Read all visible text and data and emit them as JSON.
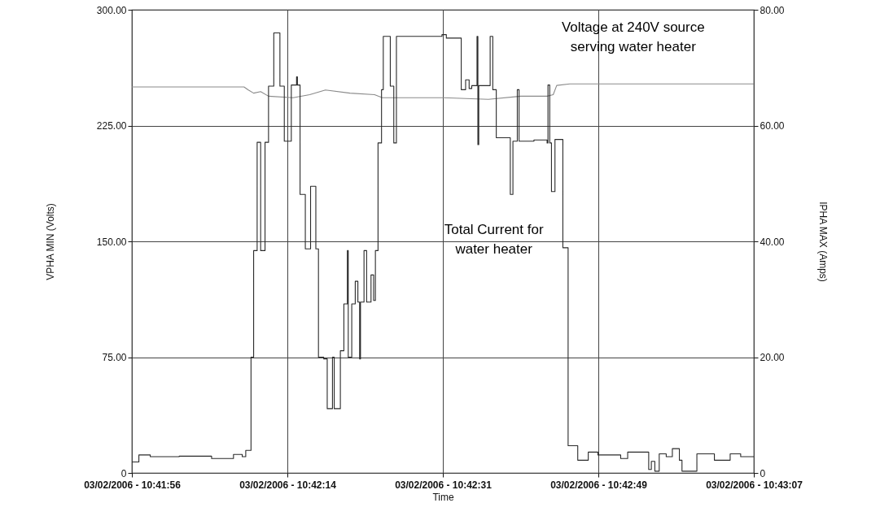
{
  "chart_data": {
    "type": "line",
    "xlabel": "Time",
    "ylabel": "VPHA MIN (Volts)",
    "y2label": "IPHA MAX (Amps)",
    "annotations": [
      "Voltage at 240V source\nserving water heater",
      "Total Current for\nwater heater"
    ],
    "xlim": [
      "2006-03-02T10:41:56",
      "2006-03-02T10:43:07"
    ],
    "xticks": [
      {
        "value": "2006-03-02T10:41:56",
        "label": "03/02/2006 - 10:41:56"
      },
      {
        "value": "2006-03-02T10:42:13.75",
        "label": "03/02/2006 - 10:42:14"
      },
      {
        "value": "2006-03-02T10:42:31.5",
        "label": "03/02/2006 - 10:42:31"
      },
      {
        "value": "2006-03-02T10:42:49.25",
        "label": "03/02/2006 - 10:42:49"
      },
      {
        "value": "2006-03-02T10:43:07",
        "label": "03/02/2006 - 10:43:07"
      }
    ],
    "ylim": [
      0,
      300
    ],
    "yticks": [
      0,
      {
        "value": 75,
        "label": "75.00"
      },
      {
        "value": 150,
        "label": "150.00"
      },
      {
        "value": 225,
        "label": "225.00"
      },
      {
        "value": 300,
        "label": "300.00"
      }
    ],
    "y2lim": [
      0,
      80
    ],
    "y2ticks": [
      0,
      {
        "value": 20,
        "label": "20.00"
      },
      {
        "value": 40,
        "label": "40.00"
      },
      {
        "value": 60,
        "label": "60.00"
      },
      {
        "value": 80,
        "label": "80.00"
      }
    ],
    "grid": true,
    "series": [
      {
        "color": "#8a8a8a",
        "x": [
          "2006-03-02T10:41:56",
          "2006-03-02T10:42:08.8",
          "2006-03-02T10:42:09.3",
          "2006-03-02T10:42:09.9",
          "2006-03-02T10:42:10.7",
          "2006-03-02T10:42:11.6",
          "2006-03-02T10:42:14.4",
          "2006-03-02T10:42:16.3",
          "2006-03-02T10:42:18.1",
          "2006-03-02T10:42:20.9",
          "2006-03-02T10:42:23.7",
          "2006-03-02T10:42:24.6",
          "2006-03-02T10:42:31.6",
          "2006-03-02T10:42:36.7",
          "2006-03-02T10:42:40.4",
          "2006-03-02T10:42:43.4",
          "2006-03-02T10:42:44.1",
          "2006-03-02T10:42:44.5",
          "2006-03-02T10:42:46",
          "2006-03-02T10:43:07"
        ],
        "values": [
          250,
          250,
          248,
          246,
          247,
          244,
          243,
          245,
          248,
          246,
          245,
          243,
          243,
          242,
          244,
          244,
          245,
          251,
          252,
          252
        ]
      },
      {
        "type": "step",
        "axis": "y2",
        "color": "#2a2a2a",
        "x": [
          "2006-03-02T10:41:56",
          "2006-03-02T10:41:56.8",
          "2006-03-02T10:41:58.1",
          "2006-03-02T10:42:01.4",
          "2006-03-02T10:42:05.1",
          "2006-03-02T10:42:07.6",
          "2006-03-02T10:42:08.6",
          "2006-03-02T10:42:09",
          "2006-03-02T10:42:09.6",
          "2006-03-02T10:42:09.9",
          "2006-03-02T10:42:10.3",
          "2006-03-02T10:42:10.7",
          "2006-03-02T10:42:11.2",
          "2006-03-02T10:42:11.6",
          "2006-03-02T10:42:12.2",
          "2006-03-02T10:42:12.9",
          "2006-03-02T10:42:13.4",
          "2006-03-02T10:42:14.2",
          "2006-03-02T10:42:14.8",
          "2006-03-02T10:42:14.9",
          "2006-03-02T10:42:15.2",
          "2006-03-02T10:42:15.8",
          "2006-03-02T10:42:16.4",
          "2006-03-02T10:42:17",
          "2006-03-02T10:42:17.3",
          "2006-03-02T10:42:17.9",
          "2006-03-02T10:42:18.3",
          "2006-03-02T10:42:18.9",
          "2006-03-02T10:42:19.1",
          "2006-03-02T10:42:19.8",
          "2006-03-02T10:42:20.2",
          "2006-03-02T10:42:20.6",
          "2006-03-02T10:42:20.7",
          "2006-03-02T10:42:21.1",
          "2006-03-02T10:42:21.5",
          "2006-03-02T10:42:21.8",
          "2006-03-02T10:42:22",
          "2006-03-02T10:42:22.1",
          "2006-03-02T10:42:22.5",
          "2006-03-02T10:42:22.8",
          "2006-03-02T10:42:23.3",
          "2006-03-02T10:42:23.6",
          "2006-03-02T10:42:23.8",
          "2006-03-02T10:42:24.1",
          "2006-03-02T10:42:24.5",
          "2006-03-02T10:42:24.7",
          "2006-03-02T10:42:25.5",
          "2006-03-02T10:42:25.9",
          "2006-03-02T10:42:26.2",
          "2006-03-02T10:42:31.4",
          "2006-03-02T10:42:31.9",
          "2006-03-02T10:42:33.6",
          "2006-03-02T10:42:34.1",
          "2006-03-02T10:42:34.5",
          "2006-03-02T10:42:34.8",
          "2006-03-02T10:42:35.4",
          "2006-03-02T10:42:35.5",
          "2006-03-02T10:42:35.6",
          "2006-03-02T10:42:36.9",
          "2006-03-02T10:42:37.2",
          "2006-03-02T10:42:37.6",
          "2006-03-02T10:42:39.2",
          "2006-03-02T10:42:39.5",
          "2006-03-02T10:42:40",
          "2006-03-02T10:42:40.2",
          "2006-03-02T10:42:41.9",
          "2006-03-02T10:42:43.4",
          "2006-03-02T10:42:43.5",
          "2006-03-02T10:42:43.7",
          "2006-03-02T10:42:43.9",
          "2006-03-02T10:42:44.3",
          "2006-03-02T10:42:45.2",
          "2006-03-02T10:42:45.8",
          "2006-03-02T10:42:46.9",
          "2006-03-02T10:42:48.1",
          "2006-03-02T10:42:49.2",
          "2006-03-02T10:42:51.8",
          "2006-03-02T10:42:52.6",
          "2006-03-02T10:42:54.6",
          "2006-03-02T10:42:55",
          "2006-03-02T10:42:55.3",
          "2006-03-02T10:42:55.7",
          "2006-03-02T10:42:56.2",
          "2006-03-02T10:42:57",
          "2006-03-02T10:42:57.7",
          "2006-03-02T10:42:58.5",
          "2006-03-02T10:42:58.8",
          "2006-03-02T10:42:59.6",
          "2006-03-02T10:43:00.5",
          "2006-03-02T10:43:02.5",
          "2006-03-02T10:43:04.3",
          "2006-03-02T10:43:05.5",
          "2006-03-02T10:43:07"
        ],
        "values": [
          1.9,
          3.1,
          2.8,
          2.9,
          2.5,
          3.2,
          2.8,
          3.9,
          20.0,
          38.4,
          57.1,
          38.4,
          57.1,
          66.8,
          76.0,
          66.8,
          57.3,
          67.0,
          68.4,
          67.0,
          48.1,
          38.7,
          49.5,
          38.7,
          20.0,
          19.7,
          11.1,
          20.0,
          11.1,
          21.1,
          29.2,
          38.4,
          20.0,
          29.2,
          33.1,
          29.5,
          19.7,
          29.5,
          38.4,
          29.5,
          34.2,
          29.8,
          38.4,
          57.0,
          66.2,
          75.4,
          66.8,
          57.0,
          75.4,
          75.7,
          75.1,
          66.2,
          67.9,
          66.4,
          66.9,
          75.4,
          56.7,
          66.9,
          75.4,
          66.2,
          57.9,
          48.1,
          57.3,
          66.2,
          57.3,
          57.5,
          57.0,
          67.0,
          57.0,
          48.6,
          57.6,
          38.9,
          4.7,
          2.2,
          3.6,
          3.1,
          2.5,
          3.6,
          3.6,
          0.6,
          2.0,
          0.3,
          3.3,
          2.8,
          4.2,
          2.2,
          0.3,
          0.3,
          3.3,
          2.2,
          3.3,
          2.8,
          2.8
        ]
      }
    ]
  }
}
